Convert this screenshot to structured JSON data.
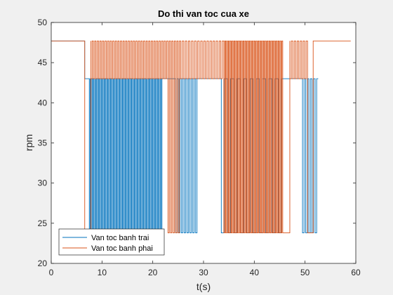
{
  "chart_data": {
    "type": "line",
    "title": "Do thi van toc cua xe",
    "xlabel": "t(s)",
    "ylabel": "rpm",
    "xlim": [
      0,
      60
    ],
    "ylim": [
      20,
      50
    ],
    "xticks": [
      0,
      10,
      20,
      30,
      40,
      50,
      60
    ],
    "yticks": [
      20,
      25,
      30,
      35,
      40,
      45,
      50
    ],
    "grid": false,
    "legend_position": "bottom-left",
    "series": [
      {
        "name": "Van toc banh trai",
        "color": "#0072BD",
        "segments": [
          {
            "x": [
              0,
              6.6
            ],
            "y": [
              47.7,
              47.7
            ]
          },
          {
            "x": [
              6.6,
              7.5
            ],
            "y": [
              43,
              43
            ]
          },
          {
            "x": [
              7.5,
              22.0
            ],
            "y_high": 43,
            "y_low": 23.8,
            "pulses": 40
          },
          {
            "x": [
              22.0,
              24.5
            ],
            "y": [
              43,
              43
            ]
          },
          {
            "x": [
              24.5,
              29.0
            ],
            "y_high": 43,
            "y_low": 23.8,
            "pulses": 8
          },
          {
            "x": [
              29.0,
              33.5
            ],
            "y": [
              43,
              43
            ]
          },
          {
            "x": [
              33.5,
              46.0
            ],
            "y_high": 43,
            "y_low": 23.8,
            "pulses": 10
          },
          {
            "x": [
              46.0,
              49.5
            ],
            "y": [
              43,
              43
            ]
          },
          {
            "x": [
              49.5,
              52.6
            ],
            "y_high": 43,
            "y_low": 23.8,
            "pulses": 5
          }
        ]
      },
      {
        "name": "Van toc banh phai",
        "color": "#D95319",
        "segments": [
          {
            "x": [
              0,
              6.6
            ],
            "y": [
              47.7,
              47.7
            ]
          },
          {
            "x": [
              6.6,
              7.8
            ],
            "y": [
              23.8,
              23.8
            ]
          },
          {
            "x": [
              7.8,
              23.0
            ],
            "y_high": 47.7,
            "y_low": 43,
            "pulses": 30
          },
          {
            "x": [
              23.0,
              25.5
            ],
            "y_high": 47.7,
            "y_low": 23.8,
            "pulses": 5
          },
          {
            "x": [
              25.5,
              34.0
            ],
            "y_high": 47.7,
            "y_low": 43,
            "pulses": 14
          },
          {
            "x": [
              34.0,
              45.6
            ],
            "y_high": 47.7,
            "y_low": 23.8,
            "pulses": 32
          },
          {
            "x": [
              45.6,
              47.0
            ],
            "y": [
              23.8,
              23.8
            ]
          },
          {
            "x": [
              47.0,
              50.5
            ],
            "y_high": 47.7,
            "y_low": 43,
            "pulses": 6
          },
          {
            "x": [
              50.5,
              51.6
            ],
            "y": [
              23.8,
              23.8
            ]
          },
          {
            "x": [
              51.6,
              59.0
            ],
            "y": [
              47.7,
              47.7
            ]
          }
        ]
      }
    ]
  }
}
